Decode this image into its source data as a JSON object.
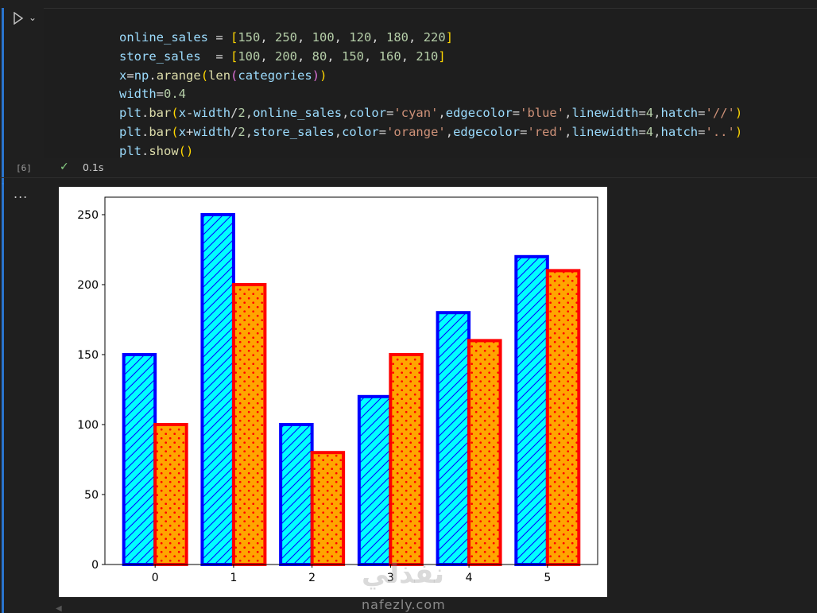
{
  "cell": {
    "execution_count": "[6]",
    "status_icon": "check-icon",
    "exec_time": "0.1s",
    "output_menu": "...",
    "code": {
      "line1": [
        "online_sales",
        " = ",
        "[",
        "150",
        ", ",
        "250",
        ", ",
        "100",
        ", ",
        "120",
        ", ",
        "180",
        ", ",
        "220",
        "]"
      ],
      "line2": [
        "store_sales",
        "  = ",
        "[",
        "100",
        ", ",
        "200",
        ", ",
        "80",
        ", ",
        "150",
        ", ",
        "160",
        ", ",
        "210",
        "]"
      ],
      "line3": [
        "x",
        "=",
        "np",
        ".",
        "arange",
        "(",
        "len",
        "(",
        "categories",
        ")",
        ")"
      ],
      "line4": [
        "width",
        "=",
        "0.4"
      ],
      "line5": [
        "plt",
        ".",
        "bar",
        "(",
        "x",
        "-",
        "width",
        "/",
        "2",
        ",",
        "online_sales",
        ",",
        "color",
        "=",
        "'cyan'",
        ",",
        "edgecolor",
        "=",
        "'blue'",
        ",",
        "linewidth",
        "=",
        "4",
        ",",
        "hatch",
        "=",
        "'//'",
        ")"
      ],
      "line6": [
        "plt",
        ".",
        "bar",
        "(",
        "x",
        "+",
        "width",
        "/",
        "2",
        ",",
        "store_sales",
        ",",
        "color",
        "=",
        "'orange'",
        ",",
        "edgecolor",
        "=",
        "'red'",
        ",",
        "linewidth",
        "=",
        "4",
        ",",
        "hatch",
        "=",
        "'..'",
        ")"
      ],
      "line7": [
        "plt",
        ".",
        "show",
        "(",
        ")"
      ]
    }
  },
  "watermark": {
    "latin": "nafezly.com",
    "arabic": "نفذلي"
  },
  "chart_data": {
    "type": "bar",
    "categories": [
      "0",
      "1",
      "2",
      "3",
      "4",
      "5"
    ],
    "series": [
      {
        "values": [
          150,
          250,
          100,
          120,
          180,
          220
        ],
        "color": "#00ffff",
        "edgecolor": "#0000ff",
        "hatch": "//"
      },
      {
        "values": [
          100,
          200,
          80,
          150,
          160,
          210
        ],
        "color": "#ffa500",
        "edgecolor": "#ff0000",
        "hatch": ".."
      }
    ],
    "yticks": [
      "0",
      "50",
      "100",
      "150",
      "200",
      "250"
    ],
    "ylim": [
      0,
      262.5
    ],
    "xlim": [
      -0.64,
      5.64
    ],
    "bar_width": 0.4,
    "xlabel": "",
    "ylabel": "",
    "title": "",
    "grid": false
  }
}
